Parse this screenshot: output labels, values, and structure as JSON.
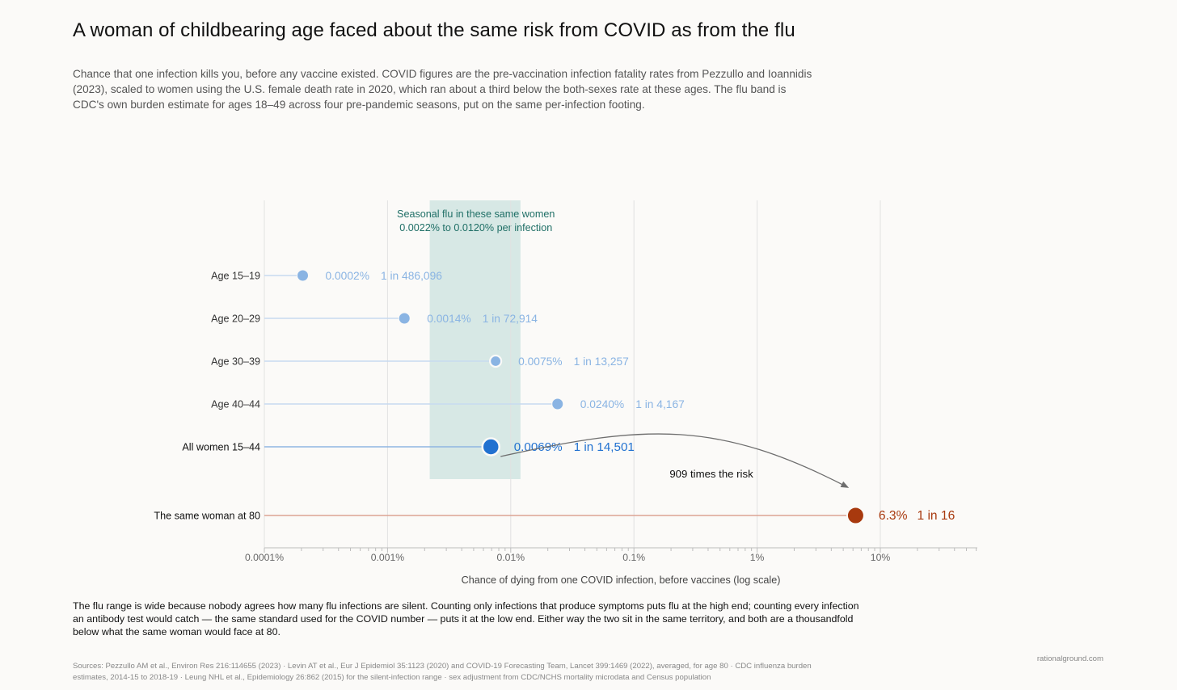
{
  "title": "A woman of childbearing age faced about the same risk from COVID as from the flu",
  "subtitle": "Chance that one infection kills you, before any vaccine existed. COVID figures are the pre-vaccination infection fatality rates from Pezzullo and Ioannidis (2023), scaled to women using the U.S. female death rate in 2020, which ran about a third below the both-sexes rate at these ages. The flu band is CDC's own burden estimate for ages 18–49 across four pre-pandemic seasons, put on the same per-infection footing.",
  "footnote": "The flu range is wide because nobody agrees how many flu infections are silent. Counting only infections that produce symptoms puts flu at the high end; counting every infection an antibody test would catch — the same standard used for the COVID number — puts it at the low end. Either way the two sit in the same territory, and both are a thousandfold below what the same woman would face at 80.",
  "sources": "Sources: Pezzullo AM et al., Environ Res 216:114655 (2023) · Levin AT et al., Eur J Epidemiol 35:1123 (2020) and COVID-19 Forecasting Team, Lancet 399:1469 (2022), averaged, for age 80 · CDC influenza burden estimates, 2014-15 to 2018-19 · Leung NHL et al., Epidemiology 26:862 (2015) for the silent-infection range · sex adjustment from CDC/NCHS mortality microdata and Census population",
  "credit": "rationalground.com",
  "chart_data": {
    "type": "scatter",
    "xlabel": "Chance of dying from one COVID infection, before vaccines (log scale)",
    "xscale": "log",
    "xlim": [
      0.0001,
      60
    ],
    "xticks": [
      "0.0001%",
      "0.001%",
      "0.01%",
      "0.1%",
      "1%",
      "10%"
    ],
    "xtick_values": [
      0.0001,
      0.001,
      0.01,
      0.1,
      1,
      10
    ],
    "grid": true,
    "rows": [
      {
        "label": "Age 15–19",
        "value": 0.000205,
        "pct": "0.0002%",
        "odds": "1 in 486,096",
        "style": "age"
      },
      {
        "label": "Age 20–29",
        "value": 0.00137,
        "pct": "0.0014%",
        "odds": "1 in 72,914",
        "style": "age"
      },
      {
        "label": "Age 30–39",
        "value": 0.00754,
        "pct": "0.0075%",
        "odds": "1 in 13,257",
        "style": "age"
      },
      {
        "label": "Age 40–44",
        "value": 0.024,
        "pct": "0.0240%",
        "odds": "1 in 4,167",
        "style": "age"
      },
      {
        "label": "All women 15–44",
        "value": 0.0069,
        "pct": "0.0069%",
        "odds": "1 in 14,501",
        "style": "all"
      },
      {
        "label": "The same woman at 80",
        "value": 6.3,
        "pct": "6.3%",
        "odds": "1 in 16",
        "style": "old"
      }
    ],
    "flu_band": {
      "low": 0.0022,
      "high": 0.012,
      "label_line1": "Seasonal flu in these same women",
      "label_line2": "0.0022% to 0.0120% per infection"
    },
    "arrow_annotation": "909 times the risk",
    "colors": {
      "age": "#8ab4e3",
      "age_line": "#c7daf0",
      "all": "#2171d0",
      "all_line": "#8fb6e2",
      "old": "#a8390e",
      "old_line": "#dca393",
      "band": "#d7e8e5",
      "band_text": "#1f6f66",
      "grid": "#e1e1e1",
      "axis": "#bdbdbd",
      "arrow": "#6e6e6e"
    }
  }
}
